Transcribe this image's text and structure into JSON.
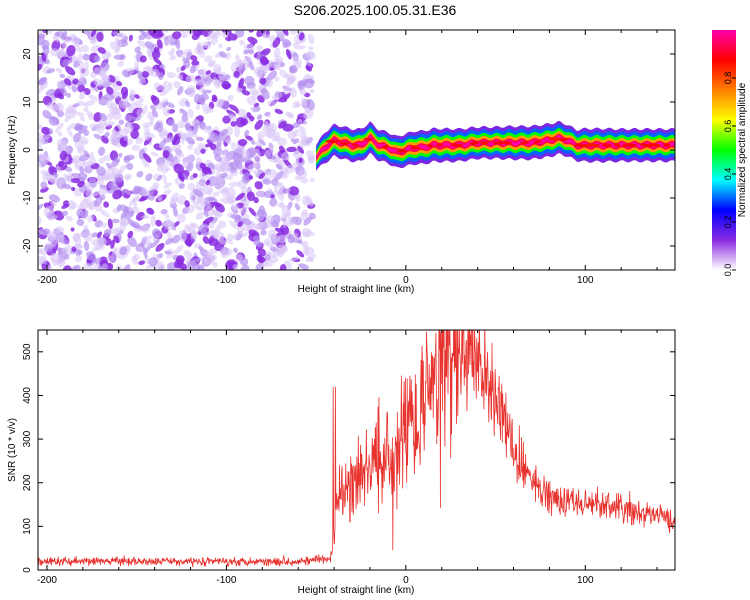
{
  "figure": {
    "title": "S206.2025.100.05.31.E36"
  },
  "chart_data": [
    {
      "type": "heatmap",
      "xlabel": "Height of straight line (km)",
      "ylabel": "Frequency (Hz)",
      "xlim": [
        -205,
        150
      ],
      "ylim": [
        -25,
        25
      ],
      "x_ticks": [
        -200,
        -100,
        0,
        100
      ],
      "y_ticks": [
        -20,
        -10,
        0,
        10,
        20
      ],
      "x_tick_labels": [
        "-200",
        "-100",
        "0",
        "100"
      ],
      "y_tick_labels": [
        "-20",
        "-10",
        "0",
        "10",
        "20"
      ],
      "noise_region_x": [
        -205,
        -52
      ],
      "ridge": {
        "x": [
          -50,
          -45,
          -40,
          -35,
          -30,
          -25,
          -20,
          -15,
          -10,
          -5,
          0,
          5,
          10,
          15,
          20,
          30,
          40,
          50,
          60,
          70,
          80,
          85,
          90,
          95,
          100,
          110,
          120,
          130,
          140,
          150
        ],
        "y": [
          -1.5,
          0.5,
          2,
          1.5,
          1,
          1,
          2.5,
          1,
          0.5,
          -0.5,
          0,
          0.5,
          0.5,
          1,
          1,
          1,
          1.5,
          1.5,
          1.5,
          1.5,
          2,
          2.5,
          2,
          1,
          1,
          1,
          1,
          1,
          1,
          1
        ],
        "amplitude": [
          0.45,
          0.8,
          0.85,
          0.9,
          0.9,
          0.9,
          0.85,
          0.8,
          0.8,
          0.85,
          0.9,
          0.95,
          0.95,
          0.95,
          0.95,
          0.9,
          0.85,
          0.85,
          0.95,
          0.95,
          0.95,
          0.9,
          0.85,
          0.8,
          0.95,
          0.95,
          0.9,
          0.9,
          0.9,
          0.9
        ]
      },
      "colorbar": {
        "label": "Normalized spectral amplitude",
        "range": [
          0.0,
          1.0
        ],
        "ticks": [
          0.0,
          0.2,
          0.4,
          0.6,
          0.8
        ],
        "tick_labels": [
          "0.0",
          "0.2",
          "0.4",
          "0.6",
          "0.8"
        ],
        "colors": [
          "#ffffff",
          "#8a2be2",
          "#0000ff",
          "#00ffff",
          "#00ff00",
          "#ffff00",
          "#ff7f00",
          "#ff0000",
          "#ff00aa"
        ]
      }
    },
    {
      "type": "line",
      "xlabel": "Height of straight line (km)",
      "ylabel": "SNR (10 * v/v)",
      "xlim": [
        -205,
        150
      ],
      "ylim": [
        0,
        550
      ],
      "x_ticks": [
        -200,
        -100,
        0,
        100
      ],
      "y_ticks": [
        0,
        100,
        200,
        300,
        400,
        500
      ],
      "x_tick_labels": [
        "-200",
        "-100",
        "0",
        "100"
      ],
      "y_tick_labels": [
        "0",
        "100",
        "200",
        "300",
        "400",
        "500"
      ],
      "color": "#e8322d",
      "series": [
        {
          "x": [
            -205,
            -150,
            -100,
            -60,
            -42,
            -40,
            -38,
            -35,
            -30,
            -25,
            -20,
            -15,
            -10,
            -8,
            -5,
            0,
            5,
            10,
            15,
            20,
            25,
            30,
            35,
            40,
            45,
            50,
            55,
            60,
            65,
            70,
            80,
            90,
            100,
            110,
            120,
            130,
            140,
            150
          ],
          "values": [
            20,
            20,
            20,
            20,
            25,
            80,
            160,
            180,
            190,
            210,
            240,
            260,
            280,
            250,
            300,
            330,
            360,
            400,
            430,
            460,
            480,
            500,
            495,
            480,
            440,
            390,
            340,
            280,
            240,
            200,
            170,
            160,
            150,
            150,
            140,
            130,
            125,
            110
          ]
        }
      ]
    }
  ]
}
